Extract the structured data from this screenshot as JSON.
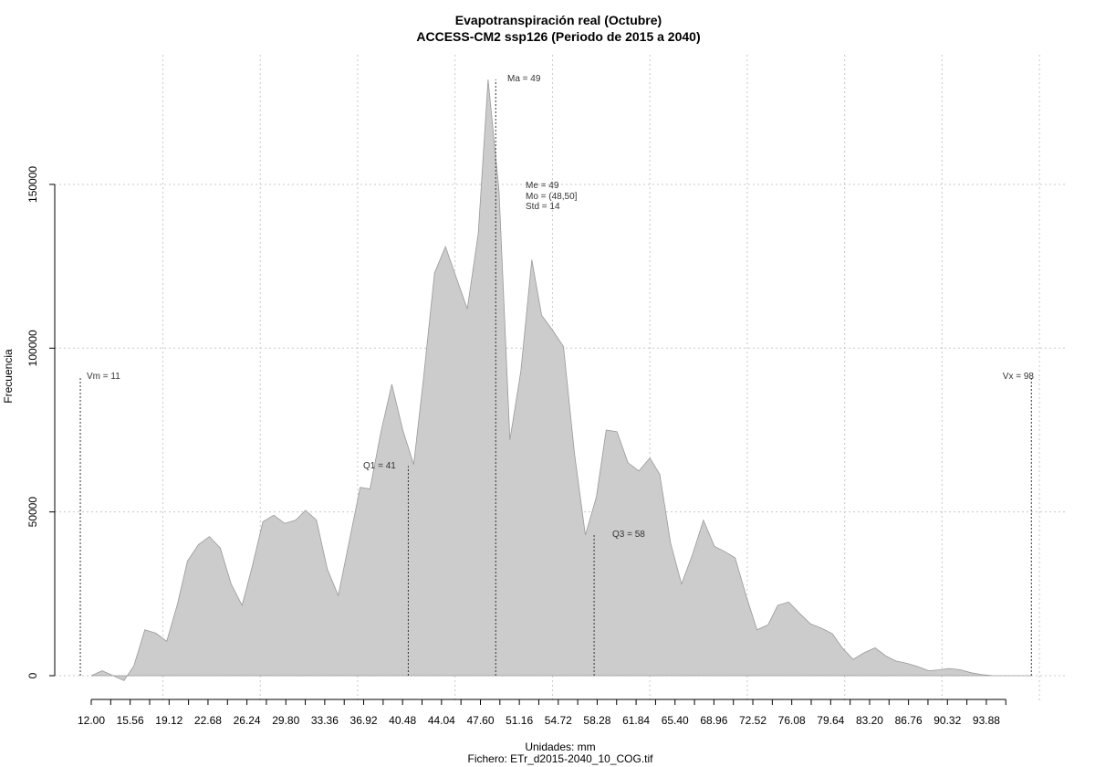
{
  "chart_data": {
    "type": "area",
    "title": "Evapotranspiración real (Octubre)",
    "subtitle": "ACCESS-CM2 ssp126 (Periodo de 2015 a 2040)",
    "xlabel": "Unidades: mm",
    "file_label": "Fichero: ETr_d2015-2040_10_COG.tif",
    "ylabel": "Frecuencia",
    "xlim": [
      9.5,
      99
    ],
    "ylim": [
      0,
      185000
    ],
    "grid": true,
    "x_ticks": [
      12.0,
      13.78,
      15.56,
      17.34,
      19.12,
      20.9,
      22.68,
      24.46,
      26.24,
      28.02,
      29.8,
      31.58,
      33.36,
      35.14,
      36.92,
      38.7,
      40.48,
      42.26,
      44.04,
      45.82,
      47.6,
      49.38,
      51.16,
      52.94,
      54.72,
      56.5,
      58.28,
      60.06,
      61.84,
      63.62,
      65.4,
      67.18,
      68.96,
      70.74,
      72.52,
      74.3,
      76.08,
      77.86,
      79.64,
      81.42,
      83.2,
      84.98,
      86.76,
      88.54,
      90.32,
      92.1,
      93.88,
      95.66
    ],
    "x_tick_labels": [
      "12.00",
      "",
      "15.56",
      "",
      "19.12",
      "",
      "22.68",
      "",
      "26.24",
      "",
      "29.80",
      "",
      "33.36",
      "",
      "36.92",
      "",
      "40.48",
      "",
      "44.04",
      "",
      "47.60",
      "",
      "51.16",
      "",
      "54.72",
      "",
      "58.28",
      "",
      "61.84",
      "",
      "65.40",
      "",
      "68.96",
      "",
      "72.52",
      "",
      "76.08",
      "",
      "79.64",
      "",
      "83.20",
      "",
      "86.76",
      "",
      "90.32",
      "",
      "93.88",
      ""
    ],
    "y_ticks": [
      0,
      50000,
      100000,
      150000
    ],
    "y_tick_labels": [
      "0",
      "50000",
      "100000",
      "150000"
    ],
    "x_grid": [
      18.55,
      27.46,
      36.37,
      45.28,
      54.19,
      63.1,
      72.01,
      80.92,
      89.83,
      98.74
    ],
    "y_grid": [
      0,
      50000,
      100000,
      150000
    ],
    "series": [
      {
        "color": "#cccccc",
        "x": [
          12.0,
          13.0,
          14.0,
          15.0,
          15.9,
          16.9,
          17.9,
          18.9,
          19.9,
          20.8,
          21.8,
          22.8,
          23.8,
          24.8,
          25.8,
          26.7,
          27.7,
          28.7,
          29.7,
          30.7,
          31.6,
          32.6,
          33.6,
          34.6,
          35.6,
          36.6,
          37.5,
          38.5,
          39.5,
          40.5,
          41.5,
          42.4,
          43.4,
          44.4,
          45.4,
          46.4,
          47.4,
          48.3,
          49.3,
          50.3,
          51.3,
          52.3,
          53.2,
          54.2,
          55.2,
          56.2,
          57.2,
          58.2,
          59.1,
          60.1,
          61.1,
          62.1,
          63.1,
          64.0,
          65.0,
          66.0,
          67.0,
          68.0,
          69.0,
          69.9,
          70.9,
          71.9,
          72.9,
          73.9,
          74.8,
          75.8,
          76.8,
          77.8,
          78.8,
          79.8,
          80.7,
          81.7,
          82.7,
          83.7,
          84.7,
          85.6,
          86.6,
          87.6,
          88.6,
          89.6,
          90.5,
          91.5,
          92.5,
          93.5,
          94.5,
          95.5,
          96.4,
          97.4,
          98.0
        ],
        "y": [
          0,
          1500,
          0,
          -1500,
          3000,
          14000,
          13000,
          10500,
          22000,
          35000,
          40000,
          42500,
          39000,
          28000,
          21500,
          33000,
          47000,
          49000,
          46500,
          47500,
          50500,
          47500,
          32500,
          24500,
          41000,
          57500,
          57000,
          74500,
          89000,
          75000,
          64500,
          91000,
          123000,
          131000,
          121500,
          112000,
          135000,
          182000,
          148000,
          72000,
          93000,
          127000,
          110000,
          105500,
          100500,
          68000,
          43000,
          54500,
          75000,
          74500,
          65000,
          62500,
          66500,
          61500,
          40500,
          28000,
          37000,
          47500,
          39500,
          38000,
          36000,
          24500,
          14000,
          15500,
          21500,
          22500,
          19000,
          15800,
          14500,
          12800,
          8500,
          5000,
          7000,
          8500,
          6000,
          4500,
          3800,
          2800,
          1500,
          1800,
          2200,
          1800,
          900,
          300,
          0,
          0,
          0,
          0,
          0
        ]
      }
    ],
    "stat_lines": [
      {
        "x": 11,
        "y_top": 91000
      },
      {
        "x": 41,
        "y_top": 64000
      },
      {
        "x": 49,
        "y_top": 182000
      },
      {
        "x": 58,
        "y_top": 43000
      },
      {
        "x": 98,
        "y_top": 91000
      }
    ],
    "annotations": {
      "vm": "Vm = 11",
      "q1": "Q1 = 41",
      "ma": "Ma = 49",
      "me": "Me = 49",
      "mo": "Mo = (48,50]",
      "std": "Std = 14",
      "q3": "Q3 = 58",
      "vx": "Vx = 98"
    }
  }
}
